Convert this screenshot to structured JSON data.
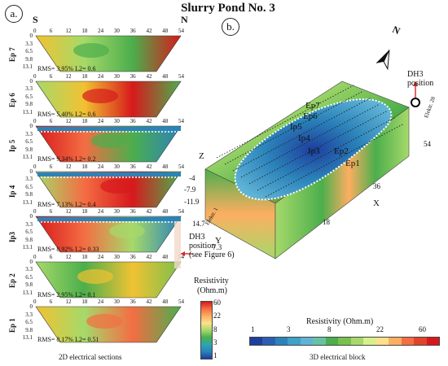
{
  "title": "Slurry Pond No. 3",
  "panel_a_label": "a.",
  "panel_b_label": "b.",
  "south_label": "S",
  "north_label": "N",
  "x_ticks": [
    "0",
    "6",
    "12",
    "18",
    "24",
    "30",
    "36",
    "42",
    "48",
    "54"
  ],
  "depth_ticks": [
    "0",
    "3.3",
    "6.5",
    "9.8",
    "13.1"
  ],
  "sections": [
    {
      "name": "Ep 7",
      "stats": "RMS= 3.95% L2= 0.6"
    },
    {
      "name": "Ep 6",
      "stats": "RMS= 5.40% L2= 0.6"
    },
    {
      "name": "Ip 5",
      "stats": "RMS= 9.34% L2= 0.2"
    },
    {
      "name": "Ip 4",
      "stats": "RMS= 7.13% L2= 0.4"
    },
    {
      "name": "Ip3",
      "stats": "RMS= 8.92% L2= 0.33"
    },
    {
      "name": "Ep 2",
      "stats": "RMS= 2.95% L2= 0.1"
    },
    {
      "name": "Ep 1",
      "stats": "RMS= 8.17% L2= 0.51"
    }
  ],
  "dh3_note": {
    "line1": "DH3",
    "line2": "position",
    "line3": "(see Figure 6)"
  },
  "sections_caption": "2D electrical sections",
  "vertical_bar": {
    "title_line1": "Resistivity",
    "title_line2": "(Ohm.m)",
    "ticks": [
      "60",
      "22",
      "8",
      "3",
      "1"
    ]
  },
  "block_labels": {
    "profiles": [
      "Ep7",
      "Ep6",
      "Ip5",
      "Ip4",
      "Ip3",
      "Ep2",
      "Ep1"
    ],
    "z_axis": "Z",
    "z_ticks": [
      "-4",
      "-7.9",
      "-11.9"
    ],
    "y_axis": "Y",
    "y_ticks": [
      "14.7",
      "7.3"
    ],
    "x_axis": "X",
    "x_ticks": [
      "54",
      "36",
      "18"
    ],
    "electrode_first": "Elektr. 1",
    "electrode_last": "Elektr. 28",
    "north_symbol": "N",
    "dh3_line1": "DH3",
    "dh3_line2": "position"
  },
  "horizontal_bar": {
    "title": "Resistivity (Ohm.m)",
    "ticks": [
      "1",
      "3",
      "8",
      "22",
      "60"
    ]
  },
  "block_caption": "3D electrical block",
  "colors": {
    "low": "#1d3f9e",
    "mid": "#4cae4c",
    "high": "#d7191c",
    "pond_outline": "#ffffff",
    "dh3_arrow": "#d62728"
  }
}
